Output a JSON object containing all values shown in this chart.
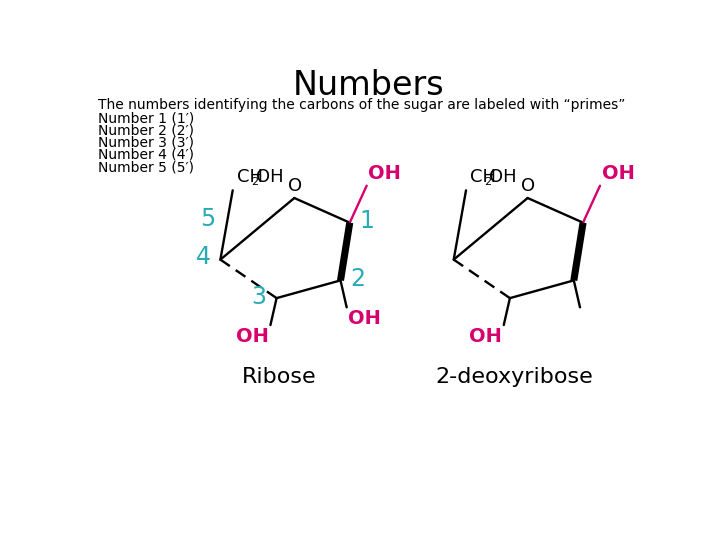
{
  "title": "Numbers",
  "title_fontsize": 24,
  "subtitle": "The numbers identifying the carbons of the sugar are labeled with “primes”",
  "subtitle_fontsize": 10,
  "list_items": [
    "Number 1 (1′)",
    "Number 2 (2′)",
    "Number 3 (3′)",
    "Number 4 (4′)",
    "Number 5 (5′)"
  ],
  "list_fontsize": 10,
  "black": "#000000",
  "cyan": "#29ABB5",
  "magenta": "#D6006E",
  "bg": "#ffffff",
  "ribose_label": "Ribose",
  "deoxyribose_label": "2-deoxyribose"
}
